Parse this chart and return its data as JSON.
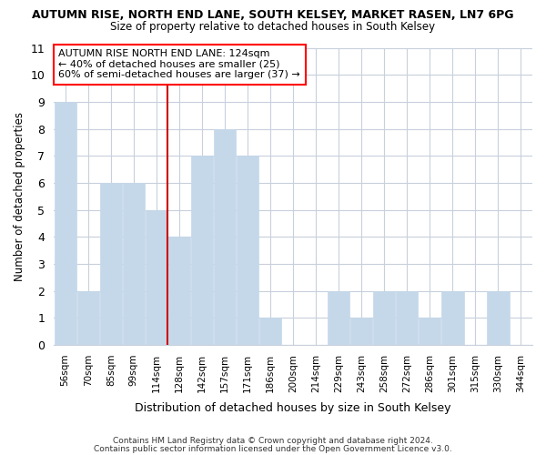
{
  "title": "AUTUMN RISE, NORTH END LANE, SOUTH KELSEY, MARKET RASEN, LN7 6PG",
  "subtitle": "Size of property relative to detached houses in South Kelsey",
  "xlabel": "Distribution of detached houses by size in South Kelsey",
  "ylabel": "Number of detached properties",
  "categories": [
    "56sqm",
    "70sqm",
    "85sqm",
    "99sqm",
    "114sqm",
    "128sqm",
    "142sqm",
    "157sqm",
    "171sqm",
    "186sqm",
    "200sqm",
    "214sqm",
    "229sqm",
    "243sqm",
    "258sqm",
    "272sqm",
    "286sqm",
    "301sqm",
    "315sqm",
    "330sqm",
    "344sqm"
  ],
  "values": [
    9,
    2,
    6,
    6,
    5,
    4,
    7,
    8,
    7,
    1,
    0,
    0,
    2,
    1,
    2,
    2,
    1,
    2,
    0,
    2,
    0
  ],
  "bar_color": "#c5d8ea",
  "bar_edgecolor": "#c5d8ea",
  "vline_x": 4.5,
  "vline_color": "#cc0000",
  "annotation_line1": "AUTUMN RISE NORTH END LANE: 124sqm",
  "annotation_line2": "← 40% of detached houses are smaller (25)",
  "annotation_line3": "60% of semi-detached houses are larger (37) →",
  "ylim": [
    0,
    11
  ],
  "yticks": [
    0,
    1,
    2,
    3,
    4,
    5,
    6,
    7,
    8,
    9,
    10,
    11
  ],
  "footer1": "Contains HM Land Registry data © Crown copyright and database right 2024.",
  "footer2": "Contains public sector information licensed under the Open Government Licence v3.0.",
  "bg_color": "#ffffff",
  "plot_bg_color": "#ffffff",
  "grid_color": "#c8d0dc"
}
